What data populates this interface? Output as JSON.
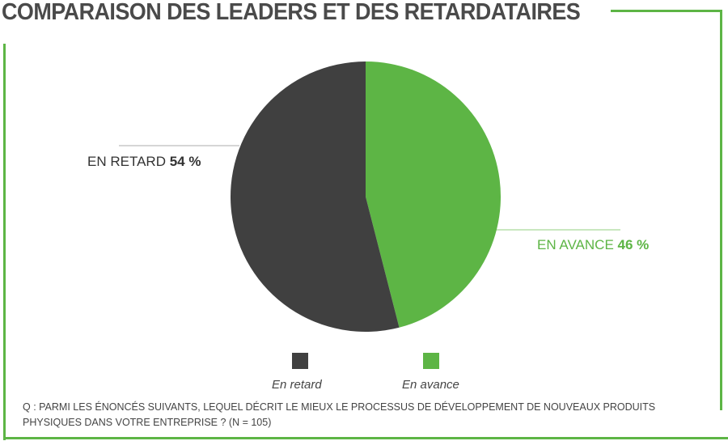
{
  "title": "COMPARAISON DES LEADERS ET DES RETARDATAIRES",
  "colors": {
    "accent": "#5db545",
    "dark": "#404040",
    "leader_line_gray": "#c8c8c8",
    "leader_line_green": "#b7e0aa"
  },
  "chart_data": {
    "type": "pie",
    "title": "COMPARAISON DES LEADERS ET DES RETARDATAIRES",
    "start_angle": "12 o'clock, clockwise",
    "slices": [
      {
        "name": "En avance",
        "value": 46,
        "color": "#5db545",
        "label_text": "EN AVANCE",
        "value_text": "46 %"
      },
      {
        "name": "En retard",
        "value": 54,
        "color": "#404040",
        "label_text": "EN RETARD",
        "value_text": "54 %"
      }
    ],
    "legend": {
      "placement": "bottom",
      "entries": [
        {
          "label": "En retard",
          "color": "#404040"
        },
        {
          "label": "En avance",
          "color": "#5db545"
        }
      ]
    }
  },
  "question": {
    "line1": "Q : PARMI LES ÉNONCÉS SUIVANTS, LEQUEL DÉCRIT LE MIEUX LE PROCESSUS DE DÉVELOPPEMENT DE NOUVEAUX PRODUITS",
    "line2": "PHYSIQUES DANS VOTRE ENTREPRISE ? (N = 105)"
  }
}
